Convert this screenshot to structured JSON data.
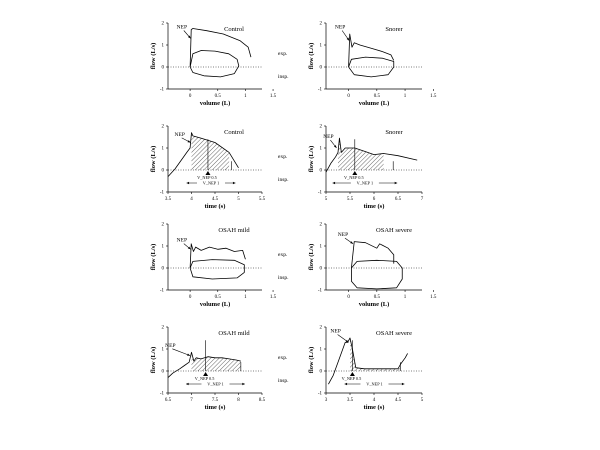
{
  "chart_data": [
    {
      "type": "line",
      "title": "Control",
      "xlabel": "volume (L)",
      "ylabel": "flow (L/s)",
      "xlim": [
        -0.4,
        1.3
      ],
      "ylim": [
        -1,
        2
      ],
      "xticks": [
        "0",
        "0.5",
        "1",
        "1.5"
      ],
      "yticks": [
        "-1",
        "0",
        "1",
        "2"
      ],
      "annotations": [
        "NEP"
      ],
      "side_labels": [
        "exp.",
        "insp."
      ],
      "series": [
        {
          "name": "nep-loop",
          "points": [
            [
              0.0,
              0.0
            ],
            [
              0.02,
              1.7
            ],
            [
              0.05,
              1.75
            ],
            [
              0.3,
              1.65
            ],
            [
              0.6,
              1.5
            ],
            [
              0.9,
              1.2
            ],
            [
              1.05,
              0.9
            ],
            [
              1.1,
              0.45
            ]
          ]
        },
        {
          "name": "tidal-loop",
          "points": [
            [
              0.0,
              0.0
            ],
            [
              0.05,
              0.6
            ],
            [
              0.2,
              0.75
            ],
            [
              0.45,
              0.72
            ],
            [
              0.7,
              0.6
            ],
            [
              0.85,
              0.35
            ],
            [
              0.88,
              0.05
            ],
            [
              0.8,
              -0.3
            ],
            [
              0.55,
              -0.45
            ],
            [
              0.25,
              -0.4
            ],
            [
              0.05,
              -0.25
            ],
            [
              0.0,
              0.0
            ]
          ]
        }
      ]
    },
    {
      "type": "line",
      "title": "Snorer",
      "xlabel": "volume (L)",
      "ylabel": "flow (L/s)",
      "xlim": [
        -0.4,
        1.3
      ],
      "ylim": [
        -1,
        2
      ],
      "xticks": [
        "0",
        "0.5",
        "1",
        "1.5"
      ],
      "yticks": [
        "-1",
        "0",
        "1",
        "2"
      ],
      "annotations": [
        "NEP"
      ],
      "side_labels": [],
      "series": [
        {
          "name": "nep-loop",
          "points": [
            [
              0.0,
              0.0
            ],
            [
              0.02,
              1.5
            ],
            [
              0.06,
              0.9
            ],
            [
              0.1,
              1.1
            ],
            [
              0.2,
              1.0
            ],
            [
              0.4,
              0.85
            ],
            [
              0.6,
              0.7
            ],
            [
              0.75,
              0.55
            ],
            [
              0.8,
              0.3
            ]
          ]
        },
        {
          "name": "tidal-loop",
          "points": [
            [
              0.0,
              0.0
            ],
            [
              0.05,
              0.35
            ],
            [
              0.3,
              0.45
            ],
            [
              0.6,
              0.4
            ],
            [
              0.8,
              0.25
            ],
            [
              0.8,
              0.0
            ],
            [
              0.7,
              -0.35
            ],
            [
              0.4,
              -0.45
            ],
            [
              0.1,
              -0.35
            ],
            [
              0.0,
              0.0
            ]
          ]
        }
      ]
    },
    {
      "type": "area",
      "title": "Control",
      "xlabel": "time (s)",
      "ylabel": "flow (L/s)",
      "xlim": [
        3.5,
        5.5
      ],
      "ylim": [
        -1,
        2
      ],
      "xticks": [
        "3.5",
        "4",
        "4.5",
        "5",
        "5.5"
      ],
      "yticks": [
        "-1",
        "0",
        "1",
        "2"
      ],
      "annotations": [
        "NEP",
        "V_NEP  0.5",
        "V_NEP  1"
      ],
      "side_labels": [
        "exp.",
        "insp."
      ],
      "series": [
        {
          "name": "flow",
          "points": [
            [
              3.5,
              -0.3
            ],
            [
              3.65,
              0.05
            ],
            [
              3.8,
              0.5
            ],
            [
              3.9,
              0.8
            ],
            [
              3.97,
              1.0
            ],
            [
              4.0,
              1.7
            ],
            [
              4.03,
              1.55
            ],
            [
              4.2,
              1.45
            ],
            [
              4.5,
              1.25
            ],
            [
              4.8,
              0.8
            ],
            [
              5.0,
              0.1
            ]
          ]
        }
      ]
    },
    {
      "type": "area",
      "title": "Snorer",
      "xlabel": "time (s)",
      "ylabel": "flow (L/s)",
      "xlim": [
        5,
        7
      ],
      "ylim": [
        -1,
        2
      ],
      "xticks": [
        "5",
        "5.5",
        "6",
        "6.5",
        "7"
      ],
      "yticks": [
        "-1",
        "0",
        "1",
        "2"
      ],
      "annotations": [
        "NEP",
        "V_NEP  0.5",
        "V_NEP  1"
      ],
      "side_labels": [],
      "series": [
        {
          "name": "flow",
          "points": [
            [
              5.0,
              -0.1
            ],
            [
              5.1,
              0.3
            ],
            [
              5.2,
              0.6
            ],
            [
              5.25,
              0.8
            ],
            [
              5.28,
              1.45
            ],
            [
              5.32,
              0.8
            ],
            [
              5.4,
              1.0
            ],
            [
              5.6,
              1.0
            ],
            [
              5.8,
              0.85
            ],
            [
              6.0,
              0.7
            ],
            [
              6.2,
              0.75
            ],
            [
              6.5,
              0.65
            ],
            [
              6.9,
              0.45
            ]
          ]
        }
      ]
    },
    {
      "type": "line",
      "title": "OSAH mild",
      "xlabel": "volume (L)",
      "ylabel": "flow (L/s)",
      "xlim": [
        -0.4,
        1.3
      ],
      "ylim": [
        -1,
        2
      ],
      "xticks": [
        "0",
        "0.5",
        "1",
        "1.5"
      ],
      "yticks": [
        "-1",
        "0",
        "1",
        "2"
      ],
      "annotations": [
        "NEP"
      ],
      "side_labels": [
        "exp.",
        "insp."
      ],
      "series": [
        {
          "name": "nep-loop",
          "points": [
            [
              0.0,
              0.0
            ],
            [
              0.02,
              1.1
            ],
            [
              0.06,
              0.75
            ],
            [
              0.1,
              0.95
            ],
            [
              0.2,
              0.8
            ],
            [
              0.35,
              0.95
            ],
            [
              0.5,
              0.85
            ],
            [
              0.65,
              0.9
            ],
            [
              0.8,
              0.75
            ],
            [
              0.95,
              0.8
            ],
            [
              1.0,
              0.4
            ]
          ]
        },
        {
          "name": "tidal-loop",
          "points": [
            [
              0.0,
              0.0
            ],
            [
              0.05,
              0.3
            ],
            [
              0.4,
              0.38
            ],
            [
              0.8,
              0.35
            ],
            [
              0.98,
              0.15
            ],
            [
              0.98,
              -0.2
            ],
            [
              0.85,
              -0.45
            ],
            [
              0.4,
              -0.5
            ],
            [
              0.05,
              -0.4
            ],
            [
              0.0,
              0.0
            ]
          ]
        }
      ]
    },
    {
      "type": "line",
      "title": "OSAH severe",
      "xlabel": "volume (L)",
      "ylabel": "flow (L/s)",
      "xlim": [
        -0.4,
        1.3
      ],
      "ylim": [
        -1,
        2
      ],
      "xticks": [
        "0",
        "0.5",
        "1",
        "1.5"
      ],
      "yticks": [
        "-1",
        "0",
        "1",
        "2"
      ],
      "annotations": [
        "NEP"
      ],
      "side_labels": [],
      "series": [
        {
          "name": "nep-loop",
          "points": [
            [
              0.05,
              0.0
            ],
            [
              0.1,
              1.2
            ],
            [
              0.3,
              1.15
            ],
            [
              0.5,
              0.9
            ],
            [
              0.55,
              1.1
            ],
            [
              0.7,
              0.9
            ],
            [
              0.8,
              0.6
            ],
            [
              0.8,
              0.2
            ]
          ]
        },
        {
          "name": "tidal-loop",
          "points": [
            [
              0.05,
              0.0
            ],
            [
              0.05,
              -0.6
            ],
            [
              0.15,
              -0.9
            ],
            [
              0.5,
              -0.95
            ],
            [
              0.85,
              -0.9
            ],
            [
              0.95,
              -0.5
            ],
            [
              0.95,
              0.0
            ],
            [
              0.85,
              0.3
            ],
            [
              0.5,
              0.35
            ],
            [
              0.15,
              0.3
            ],
            [
              0.05,
              0.0
            ]
          ]
        }
      ]
    },
    {
      "type": "area",
      "title": "OSAH mild",
      "xlabel": "time (s)",
      "ylabel": "flow (L/s)",
      "xlim": [
        6.5,
        8.5
      ],
      "ylim": [
        -1,
        2
      ],
      "xticks": [
        "6.5",
        "7",
        "7.5",
        "8",
        "8.5"
      ],
      "yticks": [
        "-1",
        "0",
        "1",
        "2"
      ],
      "annotations": [
        "NEP",
        "V_NEP  0.5",
        "V_NEP  1"
      ],
      "side_labels": [
        "exp.",
        "insp."
      ],
      "series": [
        {
          "name": "flow",
          "points": [
            [
              6.5,
              -0.3
            ],
            [
              6.6,
              -0.1
            ],
            [
              6.75,
              0.1
            ],
            [
              6.85,
              0.25
            ],
            [
              6.95,
              0.4
            ],
            [
              7.0,
              0.85
            ],
            [
              7.05,
              0.45
            ],
            [
              7.1,
              0.6
            ],
            [
              7.2,
              0.55
            ],
            [
              7.35,
              0.65
            ],
            [
              7.5,
              0.6
            ],
            [
              7.65,
              0.6
            ],
            [
              7.8,
              0.55
            ],
            [
              7.95,
              0.5
            ],
            [
              8.05,
              0.45
            ]
          ]
        }
      ]
    },
    {
      "type": "area",
      "title": "OSAH severe",
      "xlabel": "time (s)",
      "ylabel": "flow (L/s)",
      "xlim": [
        3,
        5
      ],
      "ylim": [
        -1,
        2
      ],
      "xticks": [
        "3",
        "3.5",
        "4",
        "4.5",
        "5"
      ],
      "yticks": [
        "-1",
        "0",
        "1",
        "2"
      ],
      "annotations": [
        "NEP",
        "V_NEP  0.5",
        "V_NEP  1"
      ],
      "side_labels": [],
      "series": [
        {
          "name": "flow",
          "points": [
            [
              3.05,
              -0.6
            ],
            [
              3.15,
              -0.2
            ],
            [
              3.25,
              0.4
            ],
            [
              3.35,
              1.0
            ],
            [
              3.4,
              1.3
            ],
            [
              3.45,
              1.3
            ],
            [
              3.5,
              1.5
            ],
            [
              3.55,
              1.0
            ],
            [
              3.62,
              0.15
            ],
            [
              3.8,
              0.1
            ],
            [
              4.2,
              0.1
            ],
            [
              4.5,
              0.1
            ],
            [
              4.55,
              0.3
            ],
            [
              4.65,
              0.6
            ],
            [
              4.7,
              0.8
            ]
          ]
        }
      ]
    }
  ]
}
